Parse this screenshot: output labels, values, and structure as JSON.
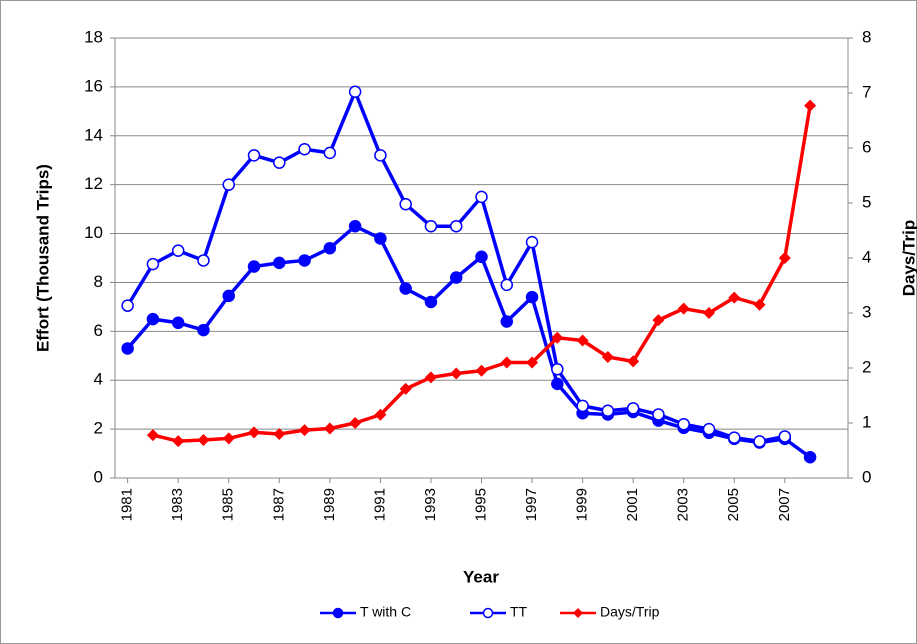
{
  "chart_data": {
    "type": "line",
    "x_label": "Year",
    "y_label": "Effort (Thousand Trips)",
    "y2_label": "Days/Trip",
    "x": [
      1981,
      1982,
      1983,
      1984,
      1985,
      1986,
      1987,
      1988,
      1989,
      1990,
      1991,
      1992,
      1993,
      1994,
      1995,
      1996,
      1997,
      1998,
      1999,
      2000,
      2001,
      2002,
      2003,
      2004,
      2005,
      2006,
      2007,
      2008
    ],
    "xlim": [
      1980.5,
      2009.5
    ],
    "xticks": [
      1981,
      1983,
      1985,
      1987,
      1989,
      1991,
      1993,
      1995,
      1997,
      1999,
      2001,
      2003,
      2005,
      2007
    ],
    "ylim": [
      0,
      18
    ],
    "yticks": [
      0,
      2,
      4,
      6,
      8,
      10,
      12,
      14,
      16,
      18
    ],
    "y2lim": [
      0,
      8
    ],
    "y2ticks": [
      0,
      1,
      2,
      3,
      4,
      5,
      6,
      7,
      8
    ],
    "legend": "bottom",
    "series": [
      {
        "name": "T with C",
        "color": "#0000ff",
        "marker": "filled-circle",
        "values": [
          5.3,
          6.5,
          6.35,
          6.05,
          7.45,
          8.65,
          8.8,
          8.9,
          9.4,
          10.3,
          9.8,
          7.75,
          7.2,
          8.2,
          9.05,
          6.4,
          7.4,
          3.85,
          2.65,
          2.6,
          2.7,
          2.35,
          2.05,
          1.85,
          1.6,
          1.45,
          1.6,
          0.85
        ]
      },
      {
        "name": "TT",
        "color": "#0000ff",
        "marker": "open-circle",
        "values": [
          7.05,
          8.75,
          9.3,
          8.9,
          12.0,
          13.2,
          12.9,
          13.45,
          13.3,
          15.8,
          13.2,
          11.2,
          10.3,
          10.3,
          11.5,
          7.9,
          9.65,
          4.45,
          2.95,
          2.75,
          2.85,
          2.6,
          2.2,
          2.0,
          1.65,
          1.5,
          1.7,
          null
        ]
      },
      {
        "name": "Days/Trip",
        "color": "#ff0000",
        "marker": "diamond",
        "axis": "y2",
        "values": [
          null,
          0.78,
          0.67,
          0.69,
          0.72,
          0.83,
          0.8,
          0.87,
          0.9,
          1.0,
          1.15,
          1.62,
          1.83,
          1.9,
          1.95,
          2.1,
          2.1,
          2.55,
          2.5,
          2.2,
          2.12,
          2.87,
          3.08,
          3.0,
          3.28,
          3.15,
          4.0,
          6.77
        ]
      }
    ]
  }
}
